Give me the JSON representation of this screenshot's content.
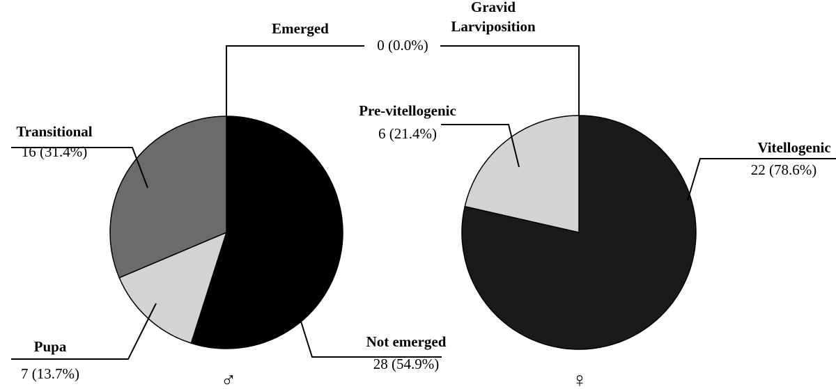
{
  "chart_data": [
    {
      "type": "pie",
      "sex_symbol": "♂",
      "start_angle_deg": 0,
      "direction": "clockwise",
      "slices": [
        {
          "key": "not-emerged",
          "label": "Not emerged",
          "value": 28,
          "value_text": "28 (54.9%)",
          "color": "#000000"
        },
        {
          "key": "pupa",
          "label": "Pupa",
          "value": 7,
          "value_text": "7 (13.7%)",
          "color": "#d3d3d3"
        },
        {
          "key": "transitional",
          "label": "Transitional",
          "value": 16,
          "value_text": "16 (31.4%)",
          "color": "#6b6b6b"
        },
        {
          "key": "emerged",
          "label": "Emerged",
          "value": 0,
          "value_text": "",
          "color": "#ffffff"
        }
      ]
    },
    {
      "type": "pie",
      "sex_symbol": "♀",
      "start_angle_deg": 0,
      "direction": "clockwise",
      "slices": [
        {
          "key": "vitellogenic",
          "label": "Vitellogenic",
          "value": 22,
          "value_text": "22 (78.6%)",
          "color": "#1a1a1a"
        },
        {
          "key": "pre-vitellogenic",
          "label": "Pre-vitellogenic",
          "value": 6,
          "value_text": "6 (21.4%)",
          "color": "#d3d3d3"
        },
        {
          "key": "gravid-larviposition",
          "label": "Gravid",
          "label_line2": "Larviposition",
          "value": 0,
          "value_text": "",
          "color": "#ffffff"
        }
      ]
    }
  ],
  "shared_zero_label": "0 (0.0%)"
}
